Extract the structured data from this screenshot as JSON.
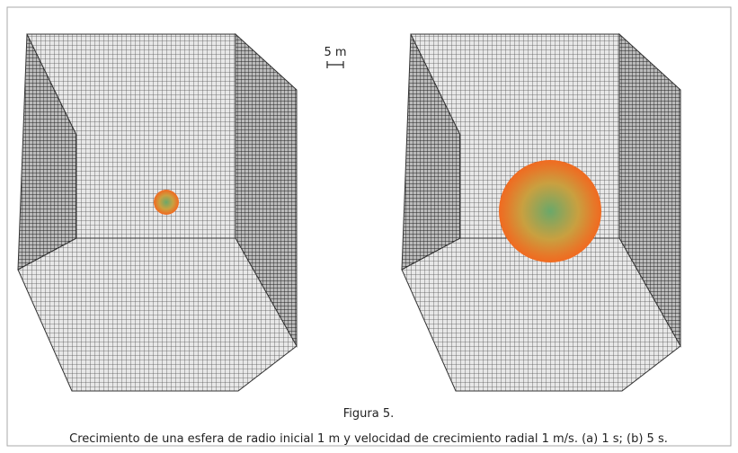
{
  "figure": {
    "scale_label": "5 m",
    "label": "Figura 5.",
    "caption": "Crecimiento de una esfera de radio inicial 1 m y velocidad de crecimiento radial 1 m/s. (a) 1 s; (b) 5 s."
  }
}
